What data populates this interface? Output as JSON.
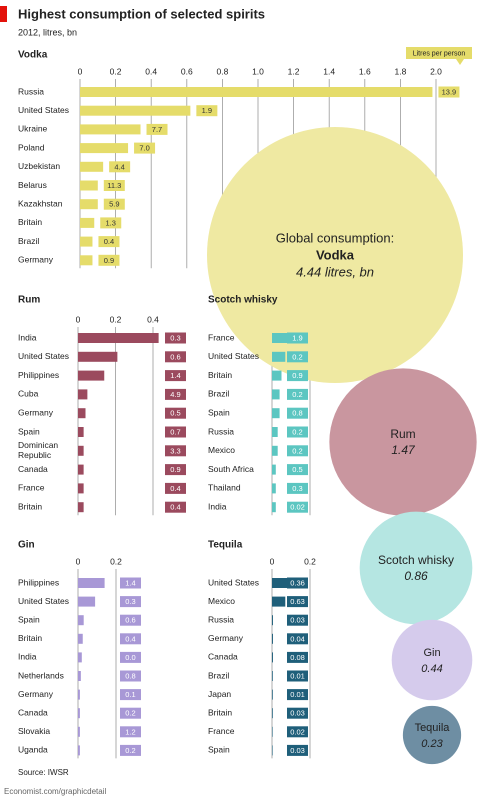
{
  "title": "Highest consumption of selected spirits",
  "subtitle": "2012, litres, bn",
  "source": "Source: IWSR",
  "footer": "Economist.com/graphicdetail",
  "chart_data": [
    {
      "type": "bar",
      "orientation": "horizontal",
      "title": "Vodka",
      "color": "#e5dc6a",
      "box_text_color": "#333",
      "categories": [
        "Russia",
        "United States",
        "Ukraine",
        "Poland",
        "Uzbekistan",
        "Belarus",
        "Kazakhstan",
        "Britain",
        "Brazil",
        "Germany"
      ],
      "values": [
        1.98,
        0.62,
        0.34,
        0.27,
        0.13,
        0.1,
        0.1,
        0.08,
        0.07,
        0.07
      ],
      "xlim": [
        0,
        2
      ],
      "xticks": [
        0,
        0.2,
        0.4,
        0.6,
        0.8,
        {
          "value": 1,
          "label": "1.0"
        },
        1.2,
        1.4,
        1.6,
        1.8,
        {
          "value": 2,
          "label": "2.0"
        }
      ],
      "grid": true,
      "per_person": {
        "name": "Litres per person",
        "values": [
          13.9,
          1.9,
          7.7,
          7,
          4.4,
          11.3,
          5.9,
          1.3,
          0.4,
          0.9
        ],
        "value_labels": [
          "13.9",
          "1.9",
          "7.7",
          "7.0",
          "4.4",
          "11.3",
          "5.9",
          "1.3",
          "0.4",
          "0.9"
        ]
      }
    },
    {
      "type": "bar",
      "orientation": "horizontal",
      "title": "Rum",
      "color": "#9b4a5e",
      "box_text_color": "#fff",
      "categories": [
        "India",
        "United States",
        "Philippines",
        "Cuba",
        "Germany",
        "Spain",
        "Dominican Republic",
        "Canada",
        "France",
        "Britain"
      ],
      "values": [
        0.43,
        0.21,
        0.14,
        0.05,
        0.04,
        0.03,
        0.03,
        0.03,
        0.03,
        0.03
      ],
      "xlim": [
        0,
        0.4
      ],
      "xticks": [
        0,
        0.2,
        0.4
      ],
      "grid": true,
      "per_person": {
        "values": [
          0.3,
          0.6,
          1.4,
          4.9,
          0.5,
          0.7,
          3.3,
          0.9,
          0.4,
          0.4
        ]
      }
    },
    {
      "type": "bar",
      "orientation": "horizontal",
      "title": "Scotch whisky",
      "color": "#5cc6c1",
      "box_text_color": "#fff",
      "categories": [
        "France",
        "United States",
        "Britain",
        "Brazil",
        "Spain",
        "Russia",
        "Mexico",
        "South Africa",
        "Thailand",
        "India"
      ],
      "values": [
        0.12,
        0.07,
        0.05,
        0.04,
        0.04,
        0.03,
        0.03,
        0.02,
        0.02,
        0.02
      ],
      "xlim": [
        0,
        0.2
      ],
      "xticks": [
        0,
        0.2
      ],
      "grid": true,
      "per_person": {
        "values": [
          1.9,
          0.2,
          0.9,
          0.2,
          0.8,
          0.2,
          0.2,
          0.5,
          0.3,
          0.02
        ]
      }
    },
    {
      "type": "bar",
      "orientation": "horizontal",
      "title": "Gin",
      "color": "#a898d6",
      "box_text_color": "#fff",
      "categories": [
        "Philippines",
        "United States",
        "Spain",
        "Britain",
        "India",
        "Netherlands",
        "Germany",
        "Canada",
        "Slovakia",
        "Uganda"
      ],
      "values": [
        0.14,
        0.09,
        0.03,
        0.025,
        0.02,
        0.015,
        0.01,
        0.01,
        0.01,
        0.01
      ],
      "xlim": [
        0,
        0.2
      ],
      "xticks": [
        0,
        0.2
      ],
      "grid": true,
      "per_person": {
        "values": [
          1.4,
          0.3,
          0.6,
          0.4,
          0,
          0.8,
          0.1,
          0.2,
          1.2,
          0.2
        ],
        "value_labels": [
          "1.4",
          "0.3",
          "0.6",
          "0.4",
          "0.0",
          "0.8",
          "0.1",
          "0.2",
          "1.2",
          "0.2"
        ]
      }
    },
    {
      "type": "bar",
      "orientation": "horizontal",
      "title": "Tequila",
      "color": "#1f5f7a",
      "box_text_color": "#fff",
      "categories": [
        "United States",
        "Mexico",
        "Russia",
        "Germany",
        "Canada",
        "Brazil",
        "Japan",
        "Britain",
        "France",
        "Spain"
      ],
      "values": [
        0.12,
        0.07,
        0.005,
        0.005,
        0.005,
        0.004,
        0.004,
        0.004,
        0.003,
        0.003
      ],
      "xlim": [
        0,
        0.2
      ],
      "xticks": [
        0,
        0.2
      ],
      "grid": true,
      "per_person": {
        "values": [
          0.36,
          0.63,
          0.03,
          0.04,
          0.08,
          0.01,
          0.01,
          0.03,
          0.02,
          0.03
        ]
      }
    },
    {
      "type": "bubble",
      "title": "Global consumption:",
      "categories": [
        "Vodka",
        "Rum",
        "Scotch whisky",
        "Gin",
        "Tequila"
      ],
      "values": [
        4.44,
        1.47,
        0.86,
        0.44,
        0.23
      ],
      "value_labels": [
        "4.44 litres, bn",
        "1.47",
        "0.86",
        "0.44",
        "0.23"
      ],
      "colors": [
        "#efe9a2",
        "#c9969f",
        "#b5e6e2",
        "#d5cbec",
        "#6e8ea3"
      ]
    }
  ]
}
